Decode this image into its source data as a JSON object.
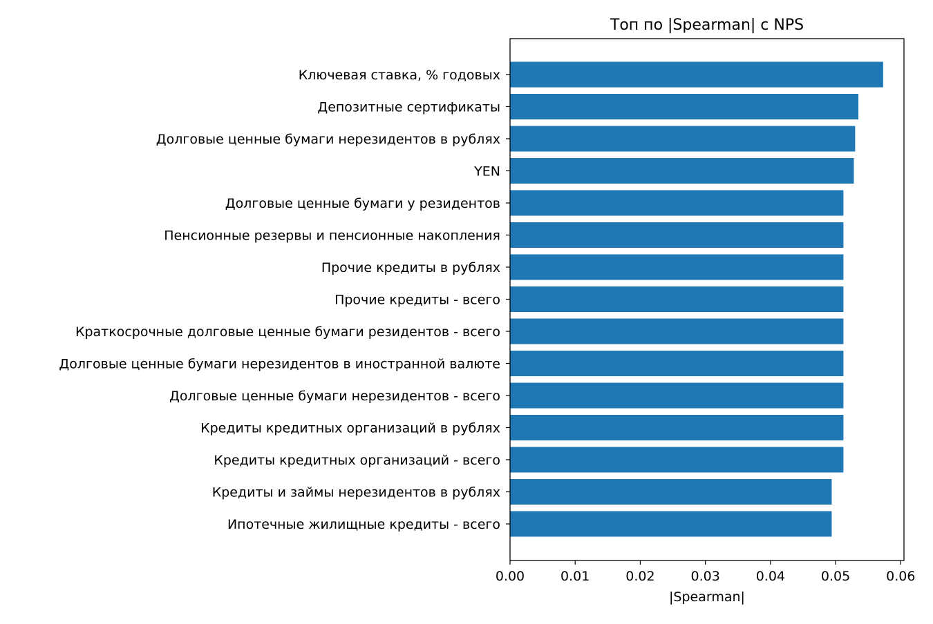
{
  "chart_data": {
    "type": "bar",
    "orientation": "horizontal",
    "title": "Топ по |Spearman| с NPS",
    "xlabel": "|Spearman|",
    "ylabel": "",
    "xlim": [
      0.0,
      0.0605
    ],
    "xticks": [
      0.0,
      0.01,
      0.02,
      0.03,
      0.04,
      0.05,
      0.06
    ],
    "xtick_labels": [
      "0.00",
      "0.01",
      "0.02",
      "0.03",
      "0.04",
      "0.05",
      "0.06"
    ],
    "grid": false,
    "legend": "none",
    "bar_color": "#1f77b4",
    "categories": [
      "Ключевая ставка, % годовых",
      "Депозитные сертификаты",
      "Долговые ценные бумаги нерезидентов в рублях",
      "YEN",
      "Долговые ценные бумаги у резидентов",
      "Пенсионные резервы и пенсионные накопления",
      "Прочие кредиты в рублях",
      "Прочие кредиты - всего",
      "Краткосрочные долговые ценные бумаги резидентов - всего",
      "Долговые ценные бумаги нерезидентов в иностранной валюте",
      "Долговые ценные бумаги нерезидентов - всего",
      "Кредиты кредитных организаций в рублях",
      "Кредиты кредитных организаций - всего",
      "Кредиты и займы нерезидентов в рублях",
      "Ипотечные жилищные кредиты - всего"
    ],
    "values": [
      0.0573,
      0.0535,
      0.053,
      0.0528,
      0.0512,
      0.0512,
      0.0512,
      0.0512,
      0.0512,
      0.0512,
      0.0512,
      0.0512,
      0.0512,
      0.0494,
      0.0494
    ]
  }
}
